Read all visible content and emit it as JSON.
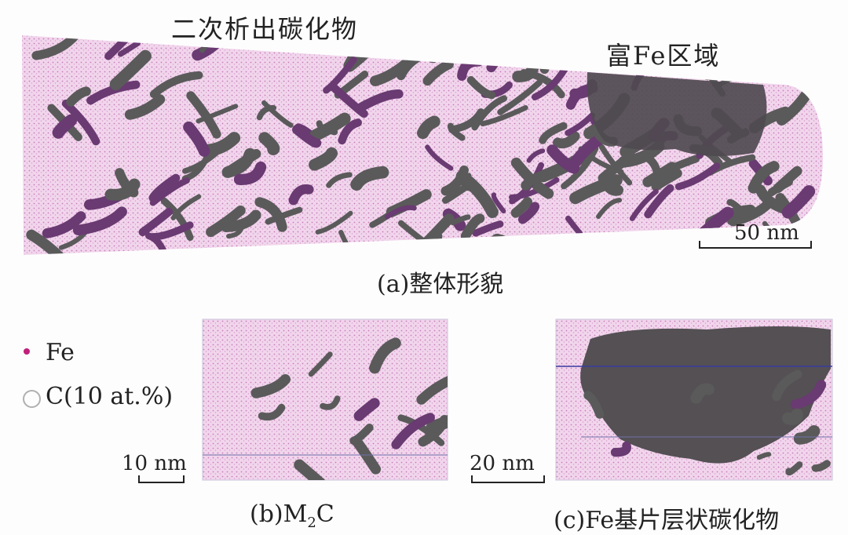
{
  "panel_a": {
    "label_precipitates": "二次析出碳化物",
    "label_fe_rich": "富Fe区域",
    "scale_bar": "50 nm",
    "caption": "(a)整体形貌"
  },
  "legend": {
    "items": [
      {
        "symbol": "filled-dot",
        "color": "#c0207a",
        "label": "Fe"
      },
      {
        "symbol": "open-circle",
        "color": "#aaaaaa",
        "label": "C(10 at.%)"
      }
    ]
  },
  "panel_b": {
    "scale_bar": "10 nm",
    "caption_prefix": "(b)M",
    "caption_sub": "2",
    "caption_suffix": "C"
  },
  "panel_c": {
    "scale_bar": "20 nm",
    "caption": "(c)Fe基片层状碳化物"
  },
  "colors": {
    "matrix": "#e8b8e0",
    "carbide": "#5a5a5a",
    "fe_rich": "#4f4a50"
  }
}
